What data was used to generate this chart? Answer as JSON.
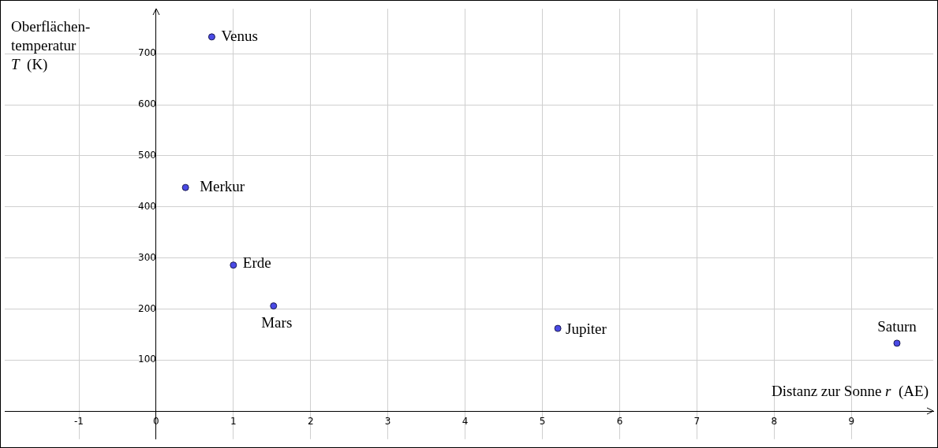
{
  "chart_data": {
    "type": "scatter",
    "xlabel": "Distanz zur Sonne r  (AE)",
    "ylabel": "Oberflächen-\ntemperatur\nT  (K)",
    "x": [
      0.38,
      0.72,
      1.0,
      1.52,
      5.2,
      9.59
    ],
    "values": [
      438,
      733,
      286,
      206,
      162,
      133
    ],
    "color": "#4a4ae6",
    "marker": "circle",
    "grid": true,
    "xlim": [
      -1.96,
      10.06
    ],
    "xticks": [
      -1,
      0,
      1,
      2,
      3,
      4,
      5,
      6,
      7,
      8,
      9
    ],
    "ylim": [
      -55,
      788
    ],
    "yticks": [
      {
        "value": 0,
        "label": null
      },
      100,
      200,
      300,
      400,
      500,
      600,
      700
    ],
    "annotations": [
      {
        "text": "Merkur",
        "x": 0.38,
        "y": 438
      },
      {
        "text": "Venus",
        "x": 0.72,
        "y": 733
      },
      {
        "text": "Erde",
        "x": 1.0,
        "y": 286
      },
      {
        "text": "Mars",
        "x": 1.52,
        "y": 206
      },
      {
        "text": "Jupiter",
        "x": 5.2,
        "y": 162
      },
      {
        "text": "Saturn",
        "x": 9.59,
        "y": 133
      }
    ]
  }
}
